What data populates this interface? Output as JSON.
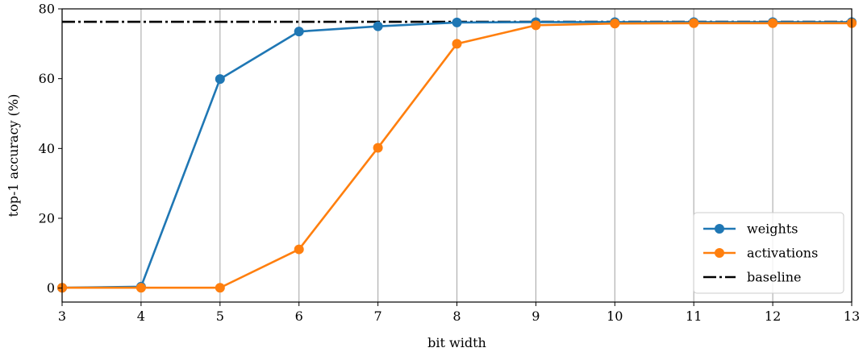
{
  "chart_data": {
    "type": "line",
    "title": "",
    "xlabel": "bit width",
    "ylabel": "top-1 accuracy (%)",
    "xlim": [
      3,
      13
    ],
    "ylim": [
      -4,
      80
    ],
    "x_ticks": [
      3,
      4,
      5,
      6,
      7,
      8,
      9,
      10,
      11,
      12,
      13
    ],
    "y_ticks": [
      0,
      20,
      40,
      60,
      80
    ],
    "grid": "vertical",
    "legend_position": "lower-right",
    "x": [
      3,
      4,
      5,
      6,
      7,
      8,
      9,
      10,
      11,
      12,
      13
    ],
    "series": [
      {
        "name": "weights",
        "color": "#1f77b4",
        "marker": "circle",
        "values": [
          0.1,
          0.4,
          59.9,
          73.5,
          75.0,
          76.1,
          76.2,
          76.2,
          76.2,
          76.2,
          76.2
        ]
      },
      {
        "name": "activations",
        "color": "#ff7f0e",
        "marker": "circle",
        "values": [
          0.1,
          0.1,
          0.1,
          11.1,
          40.2,
          70.0,
          75.3,
          75.8,
          75.9,
          75.9,
          75.9
        ]
      }
    ],
    "reference_lines": [
      {
        "name": "baseline",
        "value": 76.3,
        "color": "#000000",
        "style": "dash-dot"
      }
    ]
  }
}
